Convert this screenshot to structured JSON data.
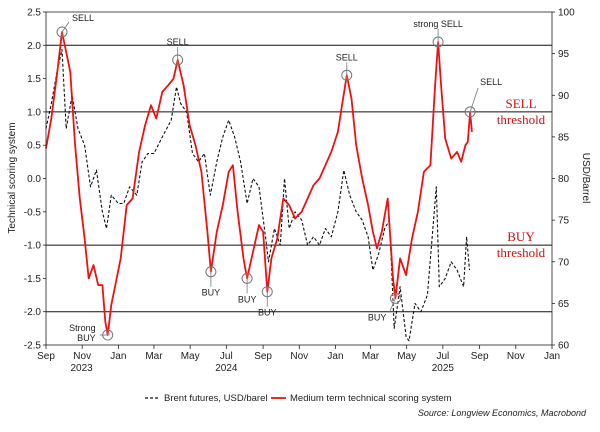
{
  "chart_data": {
    "type": "line",
    "y_left_label": "Technical scoring system",
    "y_right_label": "USD/Barrel",
    "y_left_range": [
      -2.5,
      2.5
    ],
    "y_right_range": [
      60,
      100
    ],
    "y_left_ticks": [
      "2.5",
      "2.0",
      "1.5",
      "1.0",
      "0.5",
      "0.0",
      "-0.5",
      "-1.0",
      "-1.5",
      "-2.0",
      "-2.5"
    ],
    "y_right_ticks": [
      "100",
      "95",
      "90",
      "85",
      "80",
      "75",
      "70",
      "65",
      "60"
    ],
    "x_ticks": [
      "Sep",
      "Nov",
      "Jan",
      "Mar",
      "May",
      "Jul",
      "Sep",
      "Nov",
      "Jan",
      "Mar",
      "May",
      "Jul",
      "Sep",
      "Nov",
      "Jan"
    ],
    "x_years": [
      {
        "label": "2023",
        "date": "2023-10-31"
      },
      {
        "label": "2024",
        "date": "2024-07-01"
      },
      {
        "label": "2025",
        "date": "2025-07-01"
      }
    ],
    "x_range": [
      "2023-09-01",
      "2026-01-01"
    ],
    "threshold_lines": [
      2.0,
      1.0,
      -1.0,
      -2.0
    ],
    "threshold_labels": [
      {
        "lines": [
          "SELL",
          "threshold"
        ],
        "value": 1.0
      },
      {
        "lines": [
          "BUY",
          "threshold"
        ],
        "value": -1.0
      }
    ],
    "series": [
      {
        "name": "Brent futures, USD/barel",
        "axis": "right",
        "color": "#111111",
        "style": "dashed",
        "points": [
          [
            "2023-09-01",
            86
          ],
          [
            "2023-09-10",
            89
          ],
          [
            "2023-09-20",
            93
          ],
          [
            "2023-09-28",
            95.5
          ],
          [
            "2023-10-05",
            86
          ],
          [
            "2023-10-15",
            90
          ],
          [
            "2023-10-25",
            86
          ],
          [
            "2023-11-05",
            84
          ],
          [
            "2023-11-15",
            79
          ],
          [
            "2023-11-25",
            81
          ],
          [
            "2023-12-05",
            76
          ],
          [
            "2023-12-12",
            74
          ],
          [
            "2023-12-20",
            78
          ],
          [
            "2024-01-01",
            77
          ],
          [
            "2024-01-10",
            77
          ],
          [
            "2024-01-20",
            79
          ],
          [
            "2024-02-01",
            78
          ],
          [
            "2024-02-10",
            82
          ],
          [
            "2024-02-20",
            83
          ],
          [
            "2024-03-01",
            83
          ],
          [
            "2024-03-15",
            85
          ],
          [
            "2024-03-30",
            87
          ],
          [
            "2024-04-08",
            91
          ],
          [
            "2024-04-15",
            89
          ],
          [
            "2024-04-25",
            88
          ],
          [
            "2024-05-05",
            83
          ],
          [
            "2024-05-15",
            82
          ],
          [
            "2024-05-25",
            83
          ],
          [
            "2024-06-04",
            78
          ],
          [
            "2024-06-15",
            82
          ],
          [
            "2024-06-25",
            85
          ],
          [
            "2024-07-05",
            87
          ],
          [
            "2024-07-15",
            85
          ],
          [
            "2024-07-25",
            82
          ],
          [
            "2024-08-05",
            77
          ],
          [
            "2024-08-15",
            80
          ],
          [
            "2024-08-25",
            79
          ],
          [
            "2024-09-05",
            73
          ],
          [
            "2024-09-10",
            70
          ],
          [
            "2024-09-20",
            74
          ],
          [
            "2024-09-30",
            72
          ],
          [
            "2024-10-07",
            80
          ],
          [
            "2024-10-15",
            74
          ],
          [
            "2024-10-25",
            76
          ],
          [
            "2024-11-05",
            75
          ],
          [
            "2024-11-15",
            72
          ],
          [
            "2024-11-25",
            73
          ],
          [
            "2024-12-05",
            72
          ],
          [
            "2024-12-15",
            74
          ],
          [
            "2024-12-25",
            73
          ],
          [
            "2025-01-05",
            76
          ],
          [
            "2025-01-15",
            81
          ],
          [
            "2025-01-25",
            78
          ],
          [
            "2025-02-05",
            76
          ],
          [
            "2025-02-15",
            75
          ],
          [
            "2025-02-25",
            73
          ],
          [
            "2025-03-05",
            69
          ],
          [
            "2025-03-15",
            71
          ],
          [
            "2025-03-25",
            74
          ],
          [
            "2025-04-02",
            75
          ],
          [
            "2025-04-10",
            62
          ],
          [
            "2025-04-20",
            67
          ],
          [
            "2025-04-30",
            61
          ],
          [
            "2025-05-05",
            60.5
          ],
          [
            "2025-05-15",
            65
          ],
          [
            "2025-05-25",
            64
          ],
          [
            "2025-06-05",
            66
          ],
          [
            "2025-06-13",
            73
          ],
          [
            "2025-06-20",
            79
          ],
          [
            "2025-06-25",
            67
          ],
          [
            "2025-07-05",
            68
          ],
          [
            "2025-07-15",
            70
          ],
          [
            "2025-07-25",
            69
          ],
          [
            "2025-08-05",
            67
          ],
          [
            "2025-08-10",
            73
          ],
          [
            "2025-08-15",
            69
          ]
        ]
      },
      {
        "name": "Medium term technical scoring system",
        "axis": "left",
        "color": "#ee1111",
        "style": "solid",
        "points": [
          [
            "2023-09-01",
            0.45
          ],
          [
            "2023-09-10",
            0.9
          ],
          [
            "2023-09-20",
            1.6
          ],
          [
            "2023-09-28",
            2.2
          ],
          [
            "2023-10-05",
            1.9
          ],
          [
            "2023-10-12",
            1.6
          ],
          [
            "2023-10-20",
            0.5
          ],
          [
            "2023-10-28",
            -0.3
          ],
          [
            "2023-11-05",
            -0.9
          ],
          [
            "2023-11-12",
            -1.5
          ],
          [
            "2023-11-20",
            -1.3
          ],
          [
            "2023-11-28",
            -1.6
          ],
          [
            "2023-12-05",
            -1.6
          ],
          [
            "2023-12-10",
            -2.15
          ],
          [
            "2023-12-14",
            -2.35
          ],
          [
            "2023-12-20",
            -1.9
          ],
          [
            "2024-01-05",
            -1.2
          ],
          [
            "2024-01-15",
            -0.4
          ],
          [
            "2024-01-25",
            -0.3
          ],
          [
            "2024-02-05",
            0.4
          ],
          [
            "2024-02-15",
            0.8
          ],
          [
            "2024-02-25",
            1.1
          ],
          [
            "2024-03-05",
            0.9
          ],
          [
            "2024-03-15",
            1.3
          ],
          [
            "2024-03-25",
            1.4
          ],
          [
            "2024-04-03",
            1.5
          ],
          [
            "2024-04-10",
            1.78
          ],
          [
            "2024-04-20",
            1.4
          ],
          [
            "2024-04-30",
            0.8
          ],
          [
            "2024-05-10",
            0.5
          ],
          [
            "2024-05-20",
            0.1
          ],
          [
            "2024-05-30",
            -0.8
          ],
          [
            "2024-06-05",
            -1.4
          ],
          [
            "2024-06-15",
            -0.8
          ],
          [
            "2024-06-25",
            -0.4
          ],
          [
            "2024-07-05",
            0.1
          ],
          [
            "2024-07-12",
            0.2
          ],
          [
            "2024-07-20",
            -0.5
          ],
          [
            "2024-07-30",
            -1.2
          ],
          [
            "2024-08-05",
            -1.5
          ],
          [
            "2024-08-15",
            -1.1
          ],
          [
            "2024-08-25",
            -0.7
          ],
          [
            "2024-09-01",
            -0.8
          ],
          [
            "2024-09-08",
            -1.7
          ],
          [
            "2024-09-15",
            -1.2
          ],
          [
            "2024-09-25",
            -0.9
          ],
          [
            "2024-10-05",
            -0.3
          ],
          [
            "2024-10-15",
            -0.4
          ],
          [
            "2024-10-25",
            -0.6
          ],
          [
            "2024-11-05",
            -0.5
          ],
          [
            "2024-11-15",
            -0.3
          ],
          [
            "2024-11-25",
            -0.1
          ],
          [
            "2024-12-05",
            0.0
          ],
          [
            "2024-12-15",
            0.2
          ],
          [
            "2024-12-25",
            0.4
          ],
          [
            "2025-01-05",
            0.7
          ],
          [
            "2025-01-12",
            1.1
          ],
          [
            "2025-01-20",
            1.55
          ],
          [
            "2025-01-28",
            1.2
          ],
          [
            "2025-02-05",
            0.5
          ],
          [
            "2025-02-15",
            0.0
          ],
          [
            "2025-02-25",
            -0.4
          ],
          [
            "2025-03-05",
            -0.8
          ],
          [
            "2025-03-12",
            -1.05
          ],
          [
            "2025-03-20",
            -0.8
          ],
          [
            "2025-03-30",
            -0.3
          ],
          [
            "2025-04-08",
            -1.5
          ],
          [
            "2025-04-12",
            -1.8
          ],
          [
            "2025-04-20",
            -1.2
          ],
          [
            "2025-04-30",
            -1.45
          ],
          [
            "2025-05-10",
            -0.9
          ],
          [
            "2025-05-20",
            -0.5
          ],
          [
            "2025-05-30",
            0.1
          ],
          [
            "2025-06-10",
            0.2
          ],
          [
            "2025-06-18",
            1.4
          ],
          [
            "2025-06-23",
            2.05
          ],
          [
            "2025-06-28",
            1.4
          ],
          [
            "2025-07-05",
            0.6
          ],
          [
            "2025-07-15",
            0.3
          ],
          [
            "2025-07-25",
            0.4
          ],
          [
            "2025-08-01",
            0.25
          ],
          [
            "2025-08-08",
            0.5
          ],
          [
            "2025-08-12",
            0.55
          ],
          [
            "2025-08-16",
            1.0
          ],
          [
            "2025-08-19",
            0.7
          ]
        ]
      }
    ],
    "signals": [
      {
        "label": "SELL",
        "date": "2023-09-28",
        "value": 2.2,
        "anchor": "right"
      },
      {
        "label": "SELL",
        "date": "2024-04-10",
        "value": 1.78,
        "anchor": "above"
      },
      {
        "label": "SELL",
        "date": "2025-01-20",
        "value": 1.55,
        "anchor": "above"
      },
      {
        "label": "strong SELL",
        "date": "2025-06-23",
        "value": 2.05,
        "anchor": "above"
      },
      {
        "label": "SELL",
        "date": "2025-08-16",
        "value": 1.0,
        "anchor": "above-right"
      },
      {
        "label": "Strong BUY",
        "date": "2023-12-14",
        "value": -2.35,
        "anchor": "left"
      },
      {
        "label": "BUY",
        "date": "2024-06-05",
        "value": -1.4,
        "anchor": "below"
      },
      {
        "label": "BUY",
        "date": "2024-08-05",
        "value": -1.5,
        "anchor": "below"
      },
      {
        "label": "BUY",
        "date": "2024-09-08",
        "value": -1.7,
        "anchor": "below"
      },
      {
        "label": "BUY",
        "date": "2025-04-12",
        "value": -1.8,
        "anchor": "below-left"
      }
    ],
    "legend": [
      {
        "label": "Brent futures, USD/barel",
        "style": "dashed",
        "color": "#111111"
      },
      {
        "label": "Medium term technical scoring system",
        "style": "solid",
        "color": "#ee1111"
      }
    ],
    "source": "Source: Longview Economics, Macrobond"
  }
}
